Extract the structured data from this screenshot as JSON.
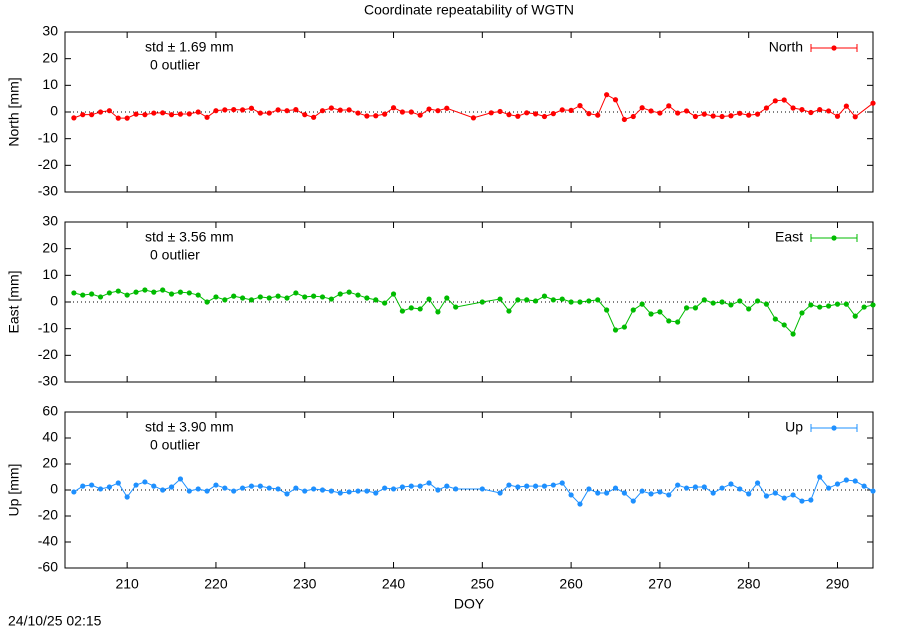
{
  "title": "Coordinate repeatability of WGTN",
  "xlabel": "DOY",
  "footer": "24/10/25 02:15",
  "chart_data": [
    {
      "type": "line",
      "ylabel": "North [mm]",
      "annotations": [
        "std ± 1.69 mm",
        "0 outlier"
      ],
      "xlim": [
        203,
        294
      ],
      "xticks": [
        210,
        220,
        230,
        240,
        250,
        260,
        270,
        280,
        290
      ],
      "ylim": [
        -30,
        30
      ],
      "yticks": [
        -30,
        -20,
        -10,
        0,
        10,
        20,
        30
      ],
      "legend": "top-right",
      "series": [
        {
          "name": "North",
          "color": "#ff0000",
          "x": [
            204,
            205,
            206,
            207,
            208,
            209,
            210,
            211,
            212,
            213,
            214,
            215,
            216,
            217,
            218,
            219,
            220,
            221,
            222,
            223,
            224,
            225,
            226,
            227,
            228,
            229,
            230,
            231,
            232,
            233,
            234,
            235,
            236,
            237,
            238,
            239,
            240,
            241,
            242,
            243,
            244,
            245,
            246,
            249,
            251,
            252,
            253,
            254,
            255,
            256,
            257,
            258,
            259,
            260,
            261,
            262,
            263,
            264,
            265,
            266,
            267,
            268,
            269,
            270,
            271,
            272,
            273,
            274,
            275,
            276,
            277,
            278,
            279,
            280,
            281,
            282,
            283,
            284,
            285,
            286,
            287,
            288,
            289,
            290,
            291,
            292,
            294
          ],
          "values": [
            -2.2,
            -1,
            -1,
            0,
            0.5,
            -2.3,
            -2.3,
            -0.8,
            -1,
            -0.4,
            -0.3,
            -1,
            -0.8,
            -0.7,
            0,
            -2,
            0.5,
            0.8,
            0.9,
            0.8,
            1.4,
            -0.4,
            -0.4,
            0.8,
            0.5,
            0.9,
            -1,
            -2,
            0.5,
            1.5,
            0.7,
            0.8,
            -0.4,
            -1.5,
            -1.4,
            -0.8,
            1.6,
            0,
            0,
            -1.2,
            1.1,
            0.5,
            1.4,
            -2.2,
            -0.3,
            0.2,
            -1,
            -1.6,
            -0.3,
            -0.7,
            -1.7,
            -0.6,
            0.8,
            0.6,
            2.4,
            -0.6,
            -1.2,
            6.5,
            4.6,
            -2.8,
            -1.7,
            1.6,
            0.4,
            -0.4,
            2.3,
            -0.4,
            0.4,
            -1.7,
            -0.8,
            -1.5,
            -1.7,
            -1.4,
            -0.5,
            -1.2,
            -0.8,
            1.5,
            4.2,
            4.5,
            1.5,
            0.9,
            -0.2,
            0.9,
            0.4,
            -1.6,
            2.2,
            -1.8,
            3.3
          ]
        }
      ]
    },
    {
      "type": "line",
      "ylabel": "East [mm]",
      "annotations": [
        "std ± 3.56 mm",
        "0 outlier"
      ],
      "xlim": [
        203,
        294
      ],
      "xticks": [
        210,
        220,
        230,
        240,
        250,
        260,
        270,
        280,
        290
      ],
      "ylim": [
        -30,
        30
      ],
      "yticks": [
        -30,
        -20,
        -10,
        0,
        10,
        20,
        30
      ],
      "legend": "top-right",
      "series": [
        {
          "name": "East",
          "color": "#00bb00",
          "x": [
            204,
            205,
            206,
            207,
            208,
            209,
            210,
            211,
            212,
            213,
            214,
            215,
            216,
            217,
            218,
            219,
            220,
            221,
            222,
            223,
            224,
            225,
            226,
            227,
            228,
            229,
            230,
            231,
            232,
            233,
            234,
            235,
            236,
            237,
            238,
            239,
            240,
            241,
            242,
            243,
            244,
            245,
            246,
            247,
            250,
            252,
            253,
            254,
            255,
            256,
            257,
            258,
            259,
            260,
            261,
            262,
            263,
            264,
            265,
            266,
            267,
            268,
            269,
            270,
            271,
            272,
            273,
            274,
            275,
            276,
            277,
            278,
            279,
            280,
            281,
            282,
            283,
            284,
            285,
            286,
            287,
            288,
            289,
            290,
            291,
            292,
            293,
            294
          ],
          "values": [
            3.4,
            2.6,
            3,
            1.9,
            3.4,
            4.1,
            2.6,
            3.7,
            4.5,
            3.7,
            4.5,
            3,
            3.7,
            3.4,
            2.6,
            0,
            1.9,
            0.8,
            2.2,
            1.5,
            0.8,
            1.9,
            1.5,
            2.2,
            1.5,
            3.4,
            1.9,
            2.2,
            1.9,
            1.1,
            3,
            3.7,
            2.6,
            1.5,
            0.8,
            -0.4,
            3,
            -3.4,
            -2.2,
            -2.6,
            1.1,
            -3.7,
            1.5,
            -1.9,
            0,
            1.1,
            -3.4,
            0.8,
            0.8,
            0.4,
            2.2,
            0.8,
            1.1,
            0,
            0,
            0.4,
            0.8,
            -3,
            -10.5,
            -9.4,
            -3,
            -0.8,
            -4.5,
            -3.7,
            -7.1,
            -7.5,
            -2.2,
            -2.2,
            0.8,
            -0.4,
            0,
            -1.1,
            0.4,
            -2.6,
            0.4,
            -0.8,
            -6.4,
            -8.6,
            -12,
            -4.1,
            -1.1,
            -1.9,
            -1.5,
            -0.8,
            -0.8,
            -5.3,
            -1.9,
            -1.1
          ]
        }
      ]
    },
    {
      "type": "line",
      "ylabel": "Up [mm]",
      "annotations": [
        "std ± 3.90 mm",
        "0 outlier"
      ],
      "xlim": [
        203,
        294
      ],
      "xticks": [
        210,
        220,
        230,
        240,
        250,
        260,
        270,
        280,
        290
      ],
      "ylim": [
        -60,
        60
      ],
      "yticks": [
        -60,
        -40,
        -20,
        0,
        20,
        40,
        60
      ],
      "legend": "top-right",
      "series": [
        {
          "name": "Up",
          "color": "#1e90ff",
          "x": [
            204,
            205,
            206,
            207,
            208,
            209,
            210,
            211,
            212,
            213,
            214,
            215,
            216,
            217,
            218,
            219,
            220,
            221,
            222,
            223,
            224,
            225,
            226,
            227,
            228,
            229,
            230,
            231,
            232,
            233,
            234,
            235,
            236,
            237,
            238,
            239,
            240,
            241,
            242,
            243,
            244,
            245,
            246,
            247,
            250,
            252,
            253,
            254,
            255,
            256,
            257,
            258,
            259,
            260,
            261,
            262,
            263,
            264,
            265,
            266,
            267,
            268,
            269,
            270,
            271,
            272,
            273,
            274,
            275,
            276,
            277,
            278,
            279,
            280,
            281,
            282,
            283,
            284,
            285,
            286,
            287,
            288,
            289,
            290,
            291,
            292,
            293,
            294
          ],
          "values": [
            -1.5,
            3,
            3.8,
            0.8,
            2.3,
            5.4,
            -5.4,
            3.8,
            6.2,
            3,
            0,
            2.3,
            8.5,
            -0.8,
            0.8,
            -0.8,
            3.8,
            1.5,
            -0.8,
            1.5,
            3,
            3,
            1.5,
            0.8,
            -3,
            1.5,
            -0.8,
            0.8,
            0,
            -0.8,
            -2.3,
            -1.5,
            -0.8,
            -0.8,
            -2.3,
            1.5,
            0.8,
            2.3,
            3,
            3,
            5.4,
            0,
            3,
            0.8,
            0.8,
            -2.3,
            3.8,
            2.3,
            3,
            3,
            3,
            3.8,
            5.4,
            -3.8,
            -10.8,
            0.8,
            -2.3,
            -2.3,
            1.5,
            -2.3,
            -8.5,
            -0.8,
            -3,
            -1.5,
            -3.8,
            3.8,
            1.5,
            2.3,
            2.3,
            -2.3,
            1.5,
            4.6,
            0.8,
            -3,
            5.4,
            -4.6,
            -2.3,
            -6.2,
            -3.8,
            -8.5,
            -7.7,
            10,
            1.5,
            4.6,
            7.7,
            6.9,
            3,
            -0.8
          ]
        }
      ]
    }
  ]
}
